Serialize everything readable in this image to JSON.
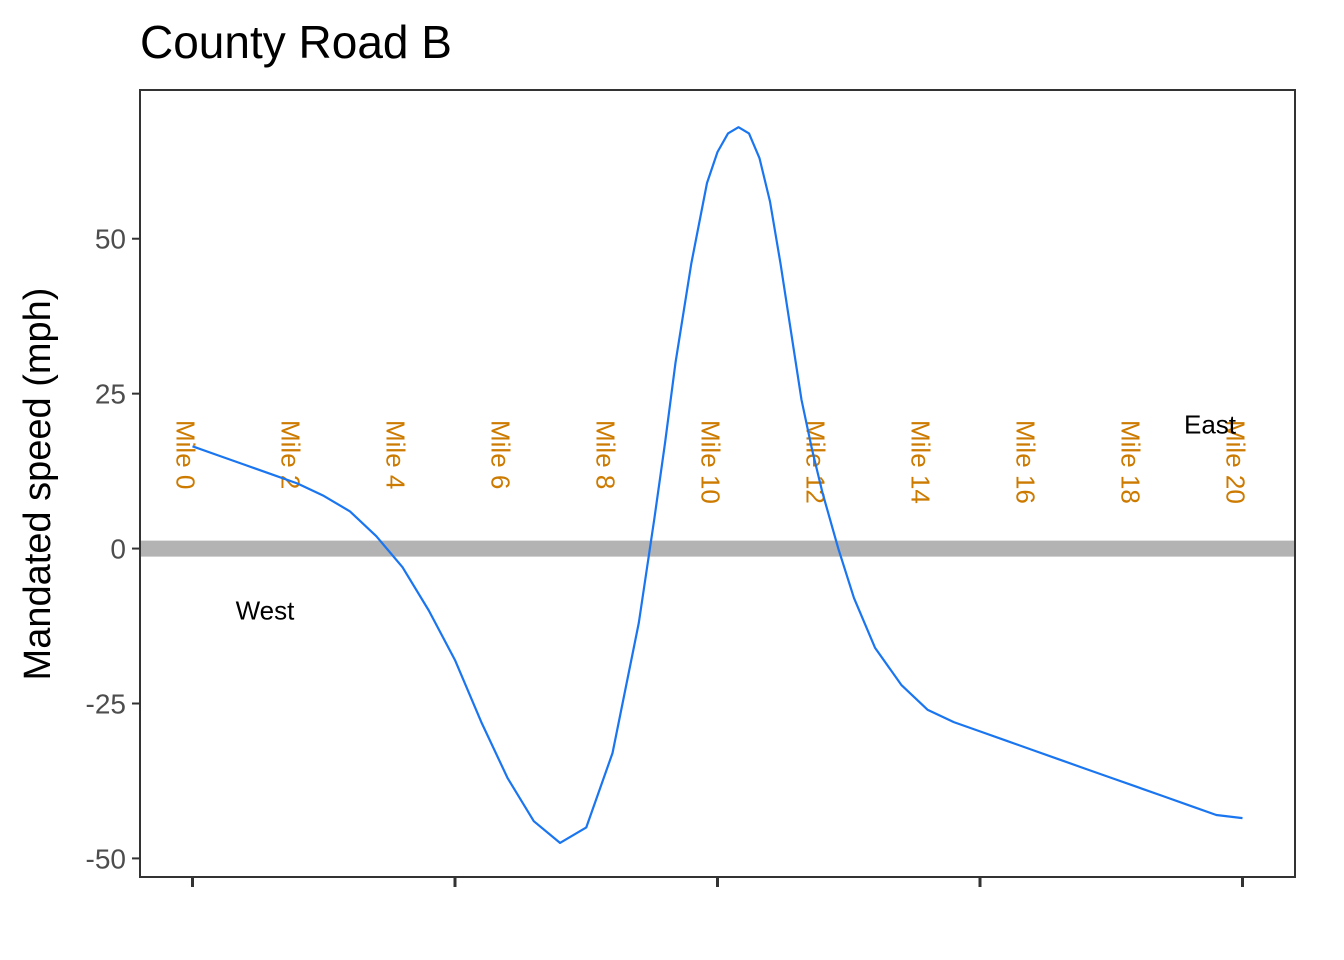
{
  "chart_data": {
    "type": "line",
    "title": "County Road B",
    "xlabel": "",
    "ylabel": "Mandated speed (mph)",
    "xlim": [
      -1,
      21
    ],
    "ylim": [
      -53,
      74
    ],
    "yticks": [
      {
        "value": 50,
        "label": "50"
      },
      {
        "value": 25,
        "label": "25"
      },
      {
        "value": 0,
        "label": "0"
      },
      {
        "value": -25,
        "label": "-25"
      },
      {
        "value": -50,
        "label": "-50"
      }
    ],
    "xticks": [
      0,
      5,
      10,
      15,
      20
    ],
    "reference_line": {
      "y": 0,
      "color": "#b3b3b3"
    },
    "mile_markers": [
      {
        "x": 0,
        "label": "Mile 0"
      },
      {
        "x": 2,
        "label": "Mile 2"
      },
      {
        "x": 4,
        "label": "Mile 4"
      },
      {
        "x": 6,
        "label": "Mile 6"
      },
      {
        "x": 8,
        "label": "Mile 8"
      },
      {
        "x": 10,
        "label": "Mile 10"
      },
      {
        "x": 12,
        "label": "Mile 12"
      },
      {
        "x": 14,
        "label": "Mile 14"
      },
      {
        "x": 16,
        "label": "Mile 16"
      },
      {
        "x": 18,
        "label": "Mile 18"
      },
      {
        "x": 20,
        "label": "Mile 20"
      }
    ],
    "mile_marker_color": "#cc7a00",
    "annotations": [
      {
        "text": "West",
        "x": 1.0,
        "y": -10
      },
      {
        "text": "East",
        "x": 19.0,
        "y": 20
      }
    ],
    "series": [
      {
        "color": "#1a75f0",
        "x": [
          0,
          0.5,
          1,
          1.5,
          2,
          2.5,
          3,
          3.5,
          4,
          4.5,
          5,
          5.5,
          6,
          6.5,
          7,
          7.5,
          8,
          8.5,
          8.8,
          9,
          9.2,
          9.5,
          9.8,
          10,
          10.2,
          10.4,
          10.6,
          10.8,
          11,
          11.2,
          11.4,
          11.6,
          11.8,
          12,
          12.3,
          12.6,
          13,
          13.5,
          14,
          14.5,
          15,
          15.5,
          16,
          16.5,
          17,
          17.5,
          18,
          18.5,
          19,
          19.5,
          20
        ],
        "y": [
          16.5,
          15,
          13.5,
          12,
          10.5,
          8.5,
          6,
          2,
          -3,
          -10,
          -18,
          -28,
          -37,
          -44,
          -47.5,
          -45,
          -33,
          -12,
          5,
          17,
          30,
          46,
          59,
          64,
          67,
          68,
          67,
          63,
          56,
          46,
          35,
          24,
          16,
          9,
          0,
          -8,
          -16,
          -22,
          -26,
          -28,
          -29.5,
          -31,
          -32.5,
          -34,
          -35.5,
          -37,
          -38.5,
          -40,
          -41.5,
          -43,
          -43.5
        ]
      }
    ]
  }
}
